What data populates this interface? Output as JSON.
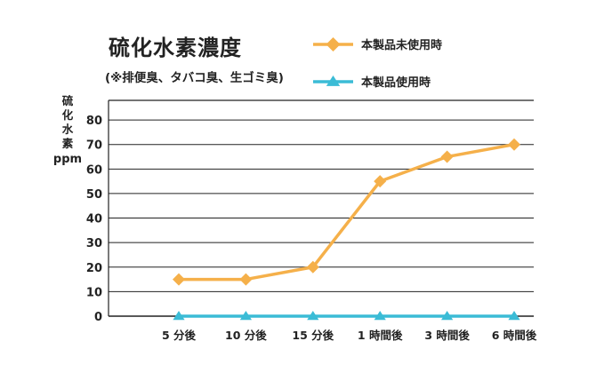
{
  "chart_data": {
    "type": "line",
    "title": "硫化水素濃度",
    "subtitle": "(※排便臭、タバコ臭、生ゴミ臭)",
    "ylabel_chars": [
      "硫",
      "化",
      "水",
      "素"
    ],
    "ylabel_unit": "ppm",
    "categories": [
      "5 分後",
      "10 分後",
      "15 分後",
      "1 時間後",
      "3 時間後",
      "6 時間後"
    ],
    "yticks": [
      0,
      10,
      20,
      30,
      40,
      50,
      60,
      70,
      80
    ],
    "ylim": [
      0,
      88
    ],
    "grid": true,
    "legend_position": "top-right",
    "series": [
      {
        "name": "本製品未使用時",
        "marker": "diamond",
        "color": "#f5b04a",
        "values": [
          15,
          15,
          20,
          55,
          65,
          70
        ]
      },
      {
        "name": "本製品使用時",
        "marker": "triangle",
        "color": "#3bbcd6",
        "values": [
          0,
          0,
          0,
          0,
          0,
          0
        ]
      }
    ]
  }
}
